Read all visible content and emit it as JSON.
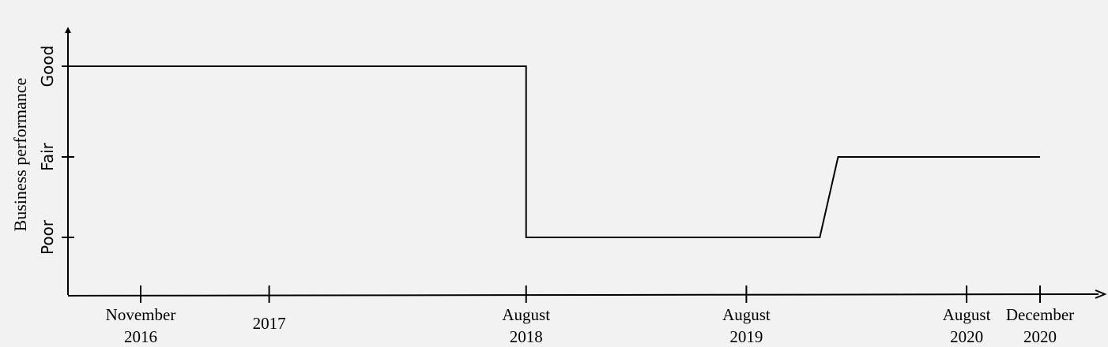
{
  "chart_data": {
    "type": "line",
    "title": "",
    "xlabel": "",
    "ylabel": "Business performance",
    "x_ticks": [
      {
        "date": "2016-11",
        "label_line1": "November",
        "label_line2": "2016"
      },
      {
        "date": "2017-06",
        "label_line1": "",
        "label_line2": "2017"
      },
      {
        "date": "2018-08",
        "label_line1": "August",
        "label_line2": "2018"
      },
      {
        "date": "2019-08",
        "label_line1": "August",
        "label_line2": "2019"
      },
      {
        "date": "2020-08",
        "label_line1": "August",
        "label_line2": "2020"
      },
      {
        "date": "2020-12",
        "label_line1": "December",
        "label_line2": "2020"
      }
    ],
    "y_categories": [
      "Poor",
      "Fair",
      "Good"
    ],
    "series": [
      {
        "points": [
          {
            "x": "2016-07",
            "y": "Good"
          },
          {
            "x": "2018-08",
            "y": "Good"
          },
          {
            "x": "2018-08",
            "y": "Poor"
          },
          {
            "x": "2019-12",
            "y": "Poor"
          },
          {
            "x": "2020-01",
            "y": "Fair"
          },
          {
            "x": "2020-12",
            "y": "Fair"
          }
        ]
      }
    ],
    "grid": false,
    "legend": "none"
  }
}
